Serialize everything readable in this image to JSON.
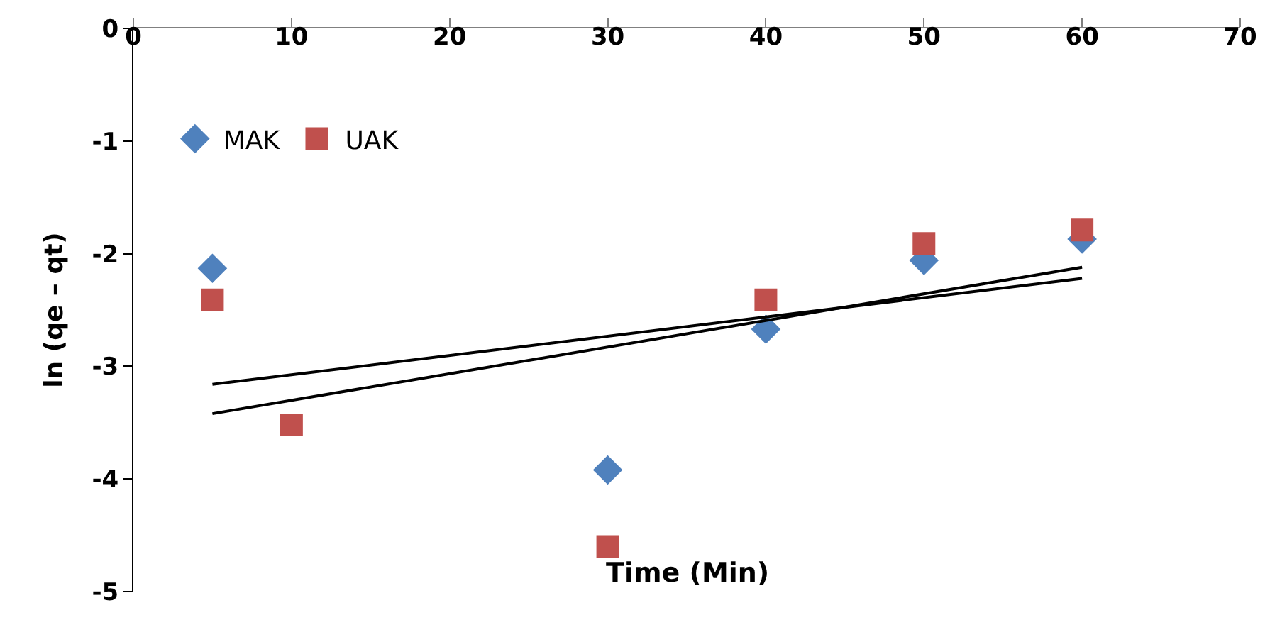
{
  "chart_data": {
    "type": "scatter",
    "xlabel": "Time (Min)",
    "ylabel": "ln (qe – qt)",
    "xlim": [
      0,
      70
    ],
    "ylim": [
      -5,
      0
    ],
    "xticks": [
      0,
      10,
      20,
      30,
      40,
      50,
      60,
      70
    ],
    "yticks": [
      -5,
      -4,
      -3,
      -2,
      -1,
      0
    ],
    "legend": "top left",
    "series": [
      {
        "name": "MAK",
        "color": "#4f81bd",
        "marker": "diamond",
        "x": [
          5,
          30,
          40,
          50,
          60
        ],
        "values": [
          -2.13,
          -3.92,
          -2.67,
          -2.06,
          -1.87
        ]
      },
      {
        "name": "UAK",
        "color": "#c0504d",
        "marker": "square",
        "x": [
          5,
          10,
          30,
          40,
          50,
          60
        ],
        "values": [
          -2.41,
          -3.52,
          -4.6,
          -2.41,
          -1.91,
          -1.79
        ]
      },
      {
        "type": "line",
        "color": "#000000",
        "x": [
          5,
          60
        ],
        "values": [
          -3.16,
          -2.22
        ]
      },
      {
        "type": "line",
        "color": "#000000",
        "x": [
          5,
          60
        ],
        "values": [
          -3.42,
          -2.12
        ]
      }
    ]
  }
}
